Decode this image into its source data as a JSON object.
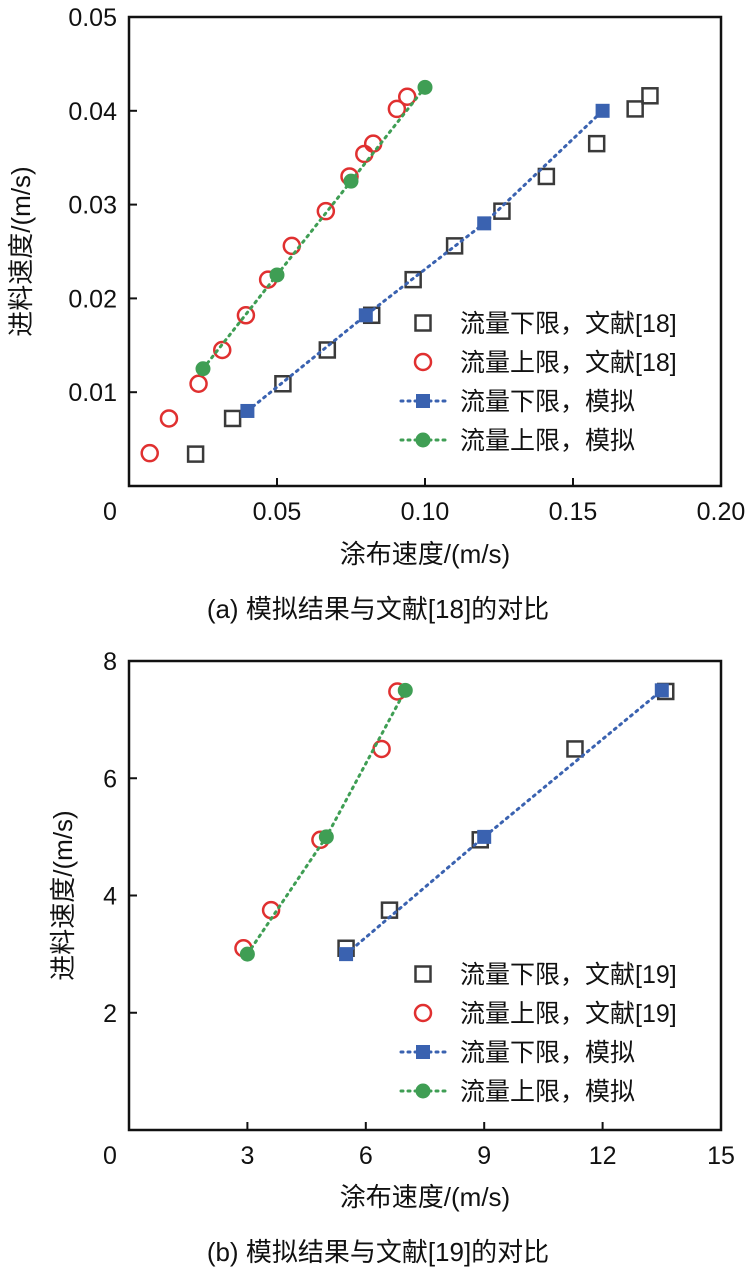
{
  "chart_data": [
    {
      "type": "scatter",
      "caption": "(a) 模拟结果与文献[18]的对比",
      "xlabel": "涂布速度/(m/s)",
      "ylabel": "进料速度/(m/s)",
      "xlim": [
        0,
        0.2
      ],
      "ylim": [
        0,
        0.05
      ],
      "x_ticks": [
        0,
        0.05,
        0.1,
        0.15,
        0.2
      ],
      "x_tick_labels": [
        "0",
        "0.05",
        "0.10",
        "0.15",
        "0.20"
      ],
      "y_ticks": [
        0.01,
        0.02,
        0.03,
        0.04,
        0.05
      ],
      "y_tick_labels": [
        "0.01",
        "0.02",
        "0.03",
        "0.04",
        "0.05"
      ],
      "legend_position": "right",
      "series": [
        {
          "name": "流量下限，文献[18]",
          "marker": "open-square",
          "color": "#3a3a3a",
          "x": [
            0.0225,
            0.035,
            0.052,
            0.067,
            0.082,
            0.096,
            0.11,
            0.126,
            0.141,
            0.158,
            0.171,
            0.176
          ],
          "y": [
            0.0034,
            0.0072,
            0.0109,
            0.0145,
            0.0182,
            0.022,
            0.0256,
            0.0293,
            0.033,
            0.0365,
            0.0402,
            0.0416
          ]
        },
        {
          "name": "流量上限，文献[18]",
          "marker": "open-circle",
          "color": "#e03030",
          "x": [
            0.007,
            0.0135,
            0.0235,
            0.0315,
            0.0395,
            0.047,
            0.055,
            0.0665,
            0.0745,
            0.0795,
            0.0825,
            0.0905,
            0.094
          ],
          "y": [
            0.0035,
            0.0072,
            0.0109,
            0.0145,
            0.0182,
            0.022,
            0.0256,
            0.0293,
            0.033,
            0.0354,
            0.0365,
            0.0402,
            0.0415
          ]
        },
        {
          "name": "流量下限，模拟",
          "marker": "filled-square",
          "line": "dotted",
          "color": "#3a62b0",
          "x": [
            0.04,
            0.08,
            0.12,
            0.16
          ],
          "y": [
            0.008,
            0.0182,
            0.028,
            0.04
          ]
        },
        {
          "name": "流量上限，模拟",
          "marker": "filled-circle",
          "line": "dotted",
          "color": "#3f9e54",
          "x": [
            0.025,
            0.05,
            0.075,
            0.1
          ],
          "y": [
            0.0125,
            0.0225,
            0.0325,
            0.0425
          ]
        }
      ]
    },
    {
      "type": "scatter",
      "caption": "(b) 模拟结果与文献[19]的对比",
      "xlabel": "涂布速度/(m/s)",
      "ylabel": "进料速度/(m/s)",
      "xlim": [
        0,
        15
      ],
      "ylim": [
        0,
        8
      ],
      "x_ticks": [
        0,
        3,
        6,
        9,
        12,
        15
      ],
      "x_tick_labels": [
        "0",
        "3",
        "6",
        "9",
        "12",
        "15"
      ],
      "y_ticks": [
        2,
        4,
        6,
        8
      ],
      "y_tick_labels": [
        "2",
        "4",
        "6",
        "8"
      ],
      "legend_position": "right",
      "series": [
        {
          "name": "流量下限，文献[19]",
          "marker": "open-square",
          "color": "#3a3a3a",
          "x": [
            5.5,
            6.6,
            8.9,
            11.3,
            13.6
          ],
          "y": [
            3.1,
            3.75,
            4.95,
            6.5,
            7.48
          ]
        },
        {
          "name": "流量上限，文献[19]",
          "marker": "open-circle",
          "color": "#e03030",
          "x": [
            2.9,
            3.6,
            4.85,
            6.4,
            6.8
          ],
          "y": [
            3.1,
            3.75,
            4.95,
            6.5,
            7.48
          ]
        },
        {
          "name": "流量下限，模拟",
          "marker": "filled-square",
          "line": "dotted",
          "color": "#3a62b0",
          "x": [
            5.5,
            9.0,
            13.5
          ],
          "y": [
            3.0,
            5.0,
            7.5
          ]
        },
        {
          "name": "流量上限，模拟",
          "marker": "filled-circle",
          "line": "dotted",
          "color": "#3f9e54",
          "x": [
            3.0,
            5.0,
            7.0
          ],
          "y": [
            3.0,
            5.0,
            7.5
          ]
        }
      ]
    }
  ]
}
